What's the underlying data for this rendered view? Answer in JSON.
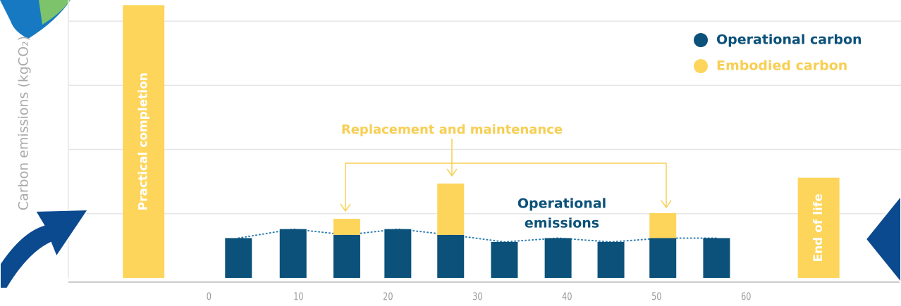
{
  "chart_data": {
    "type": "bar",
    "y_label": "Carbon emissions (kgCO₂)",
    "x": [
      -7.3,
      3.3,
      9.4,
      15.4,
      21.1,
      27.0,
      33.0,
      39.0,
      44.9,
      50.7,
      56.7,
      68.1
    ],
    "series": [
      {
        "name": "Operational carbon",
        "color": "#0b5179",
        "values": [
          null,
          0.62,
          0.76,
          0.67,
          0.76,
          0.67,
          0.56,
          0.62,
          0.56,
          0.62,
          0.62,
          null
        ]
      },
      {
        "name": "Embodied carbon",
        "color": "#fdd55a",
        "values": [
          4.25,
          null,
          null,
          0.25,
          null,
          0.8,
          null,
          null,
          null,
          0.39,
          null,
          1.56
        ],
        "bar_labels": [
          "Practical completion",
          null,
          null,
          null,
          null,
          null,
          null,
          null,
          null,
          null,
          null,
          "End of life"
        ]
      }
    ],
    "annotations": {
      "replacement": "Replacement and maintenance",
      "operational": [
        "Operational",
        "emissions"
      ]
    },
    "xlim": [
      -15.7,
      77.3
    ],
    "xticks": [
      0,
      10,
      20,
      30,
      40,
      50,
      60
    ],
    "ylim": [
      0,
      4.33
    ],
    "yticks": [
      1,
      2,
      3,
      4
    ],
    "grid": true,
    "legend": "top-right"
  }
}
